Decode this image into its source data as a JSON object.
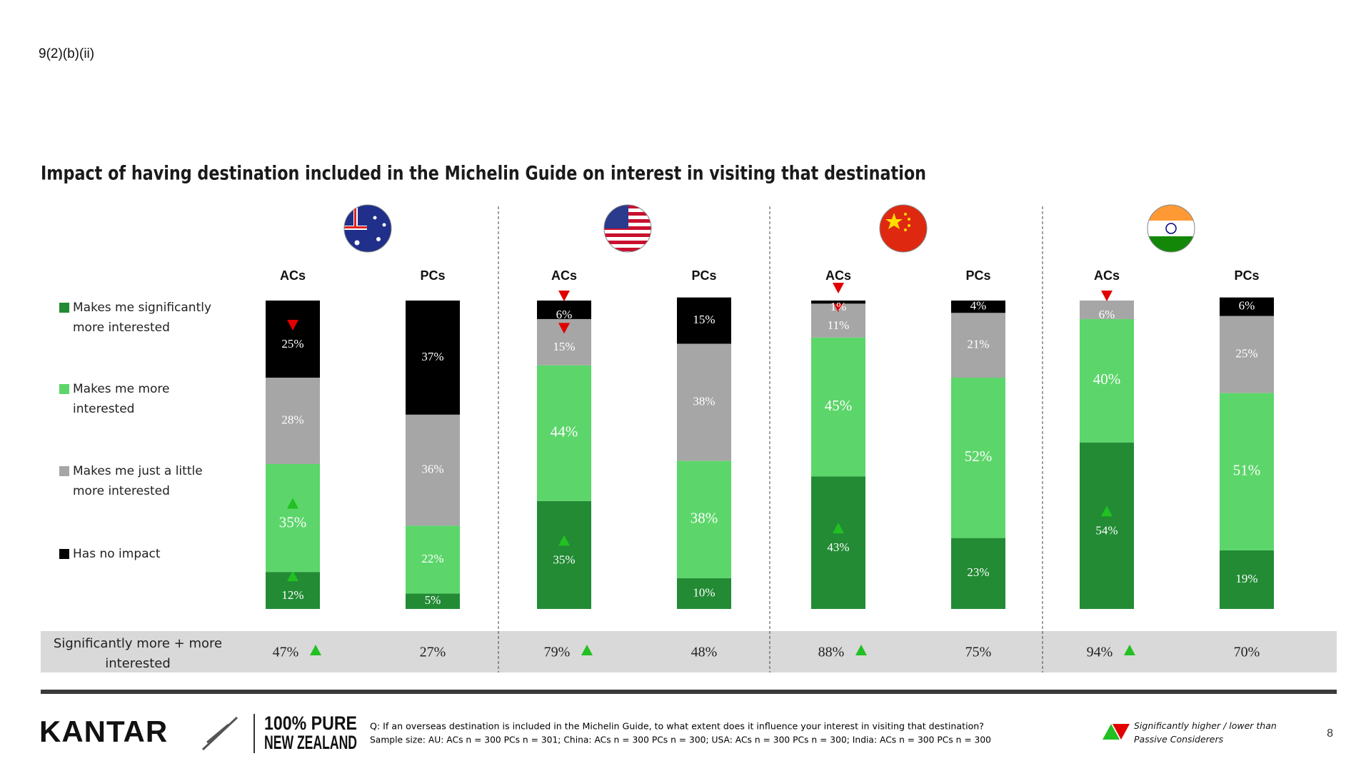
{
  "header": {
    "code": "9(2)(b)(ii)"
  },
  "chart_data": {
    "type": "stacked-bar",
    "title": "Impact of having destination included in the Michelin Guide on interest in visiting that destination",
    "categories": [
      "ACs",
      "PCs",
      "ACs",
      "PCs",
      "ACs",
      "PCs",
      "ACs",
      "PCs"
    ],
    "ylim": [
      0,
      100
    ],
    "series": [
      {
        "name": "Makes me significantly more interested",
        "color": "#228b34",
        "values": [
          12,
          5,
          35,
          10,
          43,
          23,
          54,
          19
        ],
        "value_labels": [
          "12%",
          "5%",
          "35%",
          "10%",
          "43%",
          "23%",
          "54%",
          "19%"
        ],
        "significance": [
          "up",
          null,
          "up",
          null,
          "up",
          null,
          "up",
          null
        ]
      },
      {
        "name": "Makes me more interested",
        "color": "#5cd66a",
        "values": [
          35,
          22,
          44,
          38,
          45,
          52,
          40,
          51
        ],
        "value_labels": [
          "35%",
          "22%",
          "44%",
          "38%",
          "45%",
          "52%",
          "40%",
          "51%"
        ],
        "significance": [
          "up",
          null,
          null,
          null,
          null,
          null,
          null,
          null
        ]
      },
      {
        "name": "Makes me just a little more interested",
        "color": "#a6a6a6",
        "values": [
          28,
          36,
          15,
          38,
          11,
          21,
          6,
          25
        ],
        "value_labels": [
          "28%",
          "36%",
          "15%",
          "38%",
          "11%",
          "21%",
          "6%",
          "25%"
        ],
        "significance": [
          null,
          null,
          "down",
          null,
          "down",
          null,
          "down",
          null
        ]
      },
      {
        "name": "Has no impact",
        "color": "#000000",
        "values": [
          25,
          37,
          6,
          15,
          1,
          4,
          null,
          6
        ],
        "value_labels": [
          "25%",
          "37%",
          "6%",
          "15%",
          "1%",
          "4%",
          null,
          "6%"
        ],
        "significance": [
          "down",
          null,
          "down",
          null,
          "down",
          null,
          null,
          null
        ]
      }
    ],
    "totals": {
      "label": "Significantly more + more interested",
      "values": [
        47,
        27,
        79,
        48,
        88,
        75,
        94,
        70
      ],
      "value_labels": [
        "47%",
        "27%",
        "79%",
        "48%",
        "88%",
        "75%",
        "94%",
        "70%"
      ],
      "significance": [
        "up",
        null,
        "up",
        null,
        "up",
        null,
        "up",
        null
      ]
    }
  },
  "footer": {
    "brand": "KANTAR",
    "logo_line1": "100% PURE",
    "logo_line2": "NEW ZEALAND",
    "question": "Q: If an overseas destination is included in the Michelin Guide, to what extent does it influence your interest in visiting that destination?",
    "sample": "Sample size: AU: ACs n = 300 PCs n = 301; China: ACs n = 300 PCs n = 300; USA: ACs n = 300 PCs n = 300; India: ACs n = 300 PCs n = 300",
    "significance_note": "Significantly higher / lower than Passive Considerers",
    "page": "8"
  }
}
